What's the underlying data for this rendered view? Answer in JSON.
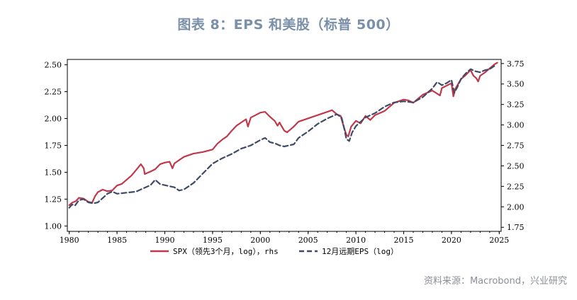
{
  "title": "图表 8：EPS 和美股（标普 500）",
  "source": "资料来源：Macrobond，兴业研究",
  "colors": {
    "spx": "#c0394b",
    "eps": "#3f4a66",
    "axis": "#000000"
  },
  "chart_data": {
    "type": "line",
    "x_ticks": [
      "1980",
      "1985",
      "1990",
      "1995",
      "2000",
      "2005",
      "2010",
      "2015",
      "2020",
      "2025"
    ],
    "x_range": [
      1979.8,
      2025.2
    ],
    "y_left": {
      "range": [
        0.95,
        2.55
      ],
      "ticks": [
        "1.00",
        "1.25",
        "1.50",
        "1.75",
        "2.00",
        "2.25",
        "2.50"
      ]
    },
    "y_right": {
      "range": [
        1.7,
        3.8
      ],
      "ticks": [
        "1.75",
        "2.00",
        "2.25",
        "2.50",
        "2.75",
        "3.00",
        "3.25",
        "3.50",
        "3.75"
      ]
    },
    "legend": [
      "SPX（领先3个月，log），rhs",
      "12月远期EPS（log）"
    ],
    "series": [
      {
        "name": "SPX（领先3个月，log），rhs",
        "axis": "right",
        "style": "solid",
        "x": [
          1980.0,
          1980.3,
          1980.7,
          1981.0,
          1981.5,
          1982.0,
          1982.4,
          1982.7,
          1983.0,
          1983.5,
          1984.0,
          1984.5,
          1985.0,
          1985.5,
          1986.0,
          1986.5,
          1987.0,
          1987.5,
          1987.8,
          1987.9,
          1988.5,
          1989.0,
          1989.5,
          1990.0,
          1990.5,
          1990.8,
          1991.0,
          1991.5,
          1992.0,
          1993.0,
          1994.0,
          1995.0,
          1995.5,
          1996.0,
          1996.5,
          1997.0,
          1997.5,
          1998.0,
          1998.5,
          1998.7,
          1999.0,
          1999.5,
          2000.0,
          2000.5,
          2001.0,
          2001.5,
          2001.8,
          2002.0,
          2002.5,
          2002.8,
          2003.0,
          2003.5,
          2004.0,
          2005.0,
          2006.0,
          2007.0,
          2007.5,
          2008.0,
          2008.4,
          2008.8,
          2009.0,
          2009.2,
          2009.5,
          2010.0,
          2010.5,
          2011.0,
          2011.5,
          2012.0,
          2013.0,
          2014.0,
          2015.0,
          2015.5,
          2016.0,
          2016.5,
          2017.0,
          2018.0,
          2018.8,
          2019.0,
          2019.5,
          2020.0,
          2020.2,
          2020.4,
          2020.8,
          2021.0,
          2021.5,
          2022.0,
          2022.3,
          2022.6,
          2022.8,
          2023.0,
          2023.5,
          2024.0,
          2024.5,
          2024.8
        ],
        "y": [
          2.02,
          2.05,
          2.07,
          2.11,
          2.1,
          2.06,
          2.05,
          2.13,
          2.18,
          2.21,
          2.19,
          2.2,
          2.26,
          2.28,
          2.33,
          2.38,
          2.45,
          2.52,
          2.47,
          2.4,
          2.43,
          2.46,
          2.52,
          2.54,
          2.55,
          2.47,
          2.53,
          2.57,
          2.61,
          2.65,
          2.67,
          2.7,
          2.77,
          2.82,
          2.86,
          2.93,
          2.99,
          3.03,
          3.07,
          2.98,
          3.09,
          3.12,
          3.15,
          3.16,
          3.1,
          3.05,
          2.99,
          3.03,
          2.93,
          2.91,
          2.93,
          2.98,
          3.04,
          3.08,
          3.12,
          3.16,
          3.18,
          3.13,
          3.11,
          2.95,
          2.88,
          2.86,
          2.98,
          3.05,
          3.02,
          3.11,
          3.06,
          3.12,
          3.17,
          3.27,
          3.31,
          3.3,
          3.27,
          3.32,
          3.37,
          3.42,
          3.36,
          3.45,
          3.48,
          3.51,
          3.35,
          3.44,
          3.52,
          3.56,
          3.61,
          3.67,
          3.6,
          3.57,
          3.53,
          3.6,
          3.64,
          3.69,
          3.74,
          3.76
        ]
      },
      {
        "name": "12月远期EPS（log）",
        "axis": "left",
        "style": "dashed",
        "x": [
          1980.0,
          1980.3,
          1980.6,
          1981.0,
          1981.5,
          1982.0,
          1982.5,
          1983.0,
          1983.5,
          1984.0,
          1984.5,
          1985.0,
          1986.0,
          1987.0,
          1988.0,
          1988.5,
          1989.0,
          1989.5,
          1990.0,
          1990.5,
          1991.0,
          1991.5,
          1992.0,
          1993.0,
          1994.0,
          1995.0,
          1996.0,
          1997.0,
          1998.0,
          1999.0,
          2000.0,
          2000.5,
          2001.0,
          2001.5,
          2002.0,
          2002.5,
          2003.0,
          2003.5,
          2004.0,
          2005.0,
          2006.0,
          2007.0,
          2007.5,
          2008.0,
          2008.5,
          2008.8,
          2009.0,
          2009.3,
          2009.6,
          2010.0,
          2011.0,
          2012.0,
          2013.0,
          2014.0,
          2015.0,
          2016.0,
          2017.0,
          2018.0,
          2018.5,
          2019.0,
          2019.5,
          2020.0,
          2020.3,
          2020.6,
          2021.0,
          2021.5,
          2022.0,
          2022.5,
          2023.0,
          2023.5,
          2024.0,
          2024.5
        ],
        "y": [
          1.17,
          1.2,
          1.19,
          1.24,
          1.25,
          1.22,
          1.21,
          1.22,
          1.26,
          1.3,
          1.32,
          1.3,
          1.31,
          1.32,
          1.36,
          1.38,
          1.43,
          1.39,
          1.38,
          1.37,
          1.36,
          1.33,
          1.34,
          1.4,
          1.49,
          1.58,
          1.63,
          1.67,
          1.72,
          1.75,
          1.8,
          1.82,
          1.78,
          1.77,
          1.75,
          1.74,
          1.75,
          1.76,
          1.82,
          1.88,
          1.95,
          2.0,
          2.02,
          2.04,
          2.01,
          1.9,
          1.81,
          1.79,
          1.87,
          1.93,
          2.01,
          2.05,
          2.11,
          2.15,
          2.16,
          2.15,
          2.2,
          2.28,
          2.34,
          2.31,
          2.33,
          2.36,
          2.24,
          2.29,
          2.37,
          2.42,
          2.46,
          2.44,
          2.43,
          2.45,
          2.46,
          2.49
        ]
      }
    ]
  }
}
